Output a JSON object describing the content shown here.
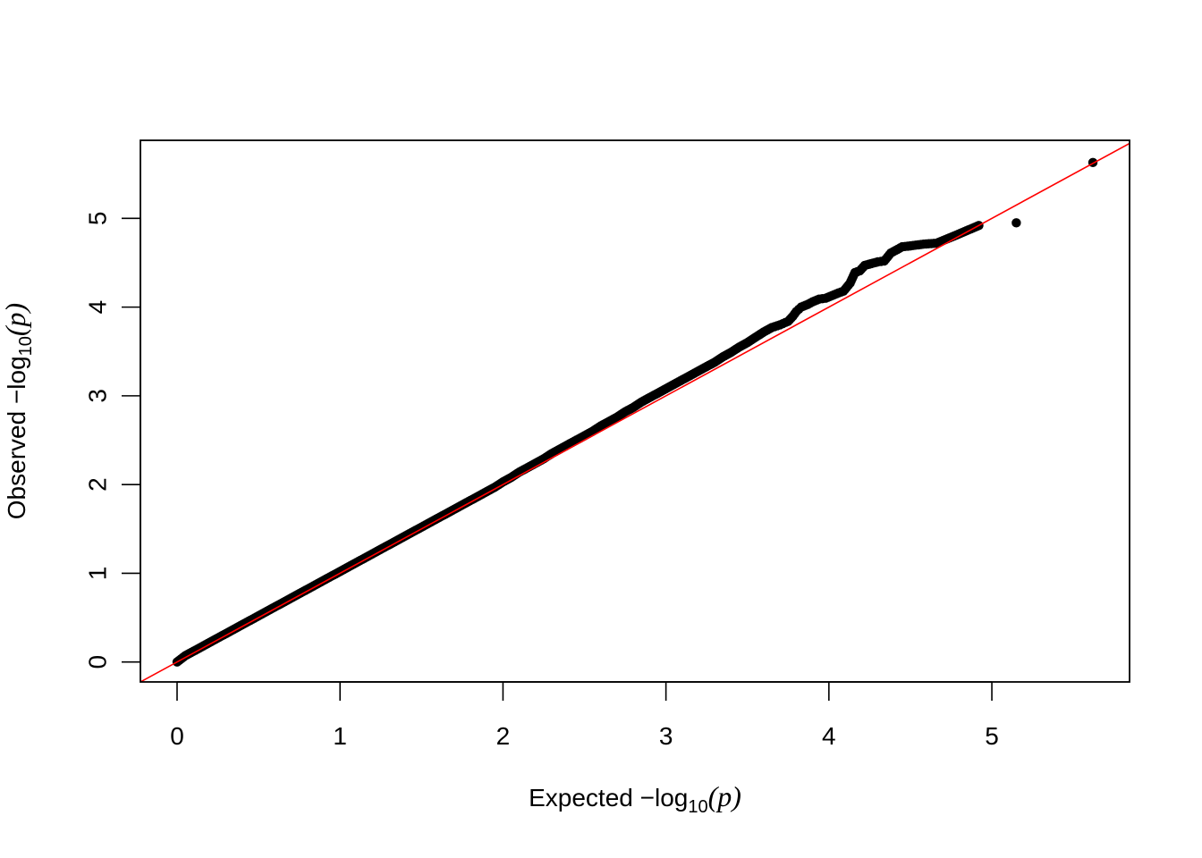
{
  "chart_data": {
    "type": "scatter",
    "title": "",
    "xlabel": {
      "prefix": "Expected  −log",
      "subscript": "10",
      "suffix": "(p)"
    },
    "ylabel": {
      "prefix": "Observed  −log",
      "subscript": "10",
      "suffix": "(p)"
    },
    "xlim": [
      -0.225,
      5.845
    ],
    "ylim": [
      -0.225,
      5.88
    ],
    "xticks": [
      0,
      1,
      2,
      3,
      4,
      5
    ],
    "yticks": [
      0,
      1,
      2,
      3,
      4,
      5
    ],
    "xtick_labels": [
      "0",
      "1",
      "2",
      "3",
      "4",
      "5"
    ],
    "ytick_labels": [
      "0",
      "1",
      "2",
      "3",
      "4",
      "5"
    ],
    "grid": false,
    "reference_line": {
      "slope": 1,
      "intercept": 0,
      "color": "#ff0000"
    },
    "point_color": "#000000",
    "series": [
      {
        "points": [
          [
            0.0,
            0.0
          ],
          [
            0.05,
            0.07
          ],
          [
            0.1,
            0.12
          ],
          [
            0.15,
            0.17
          ],
          [
            0.2,
            0.22
          ],
          [
            0.25,
            0.27
          ],
          [
            0.3,
            0.32
          ],
          [
            0.35,
            0.37
          ],
          [
            0.4,
            0.42
          ],
          [
            0.45,
            0.47
          ],
          [
            0.5,
            0.52
          ],
          [
            0.55,
            0.57
          ],
          [
            0.6,
            0.62
          ],
          [
            0.65,
            0.67
          ],
          [
            0.7,
            0.72
          ],
          [
            0.75,
            0.77
          ],
          [
            0.8,
            0.82
          ],
          [
            0.85,
            0.87
          ],
          [
            0.9,
            0.92
          ],
          [
            0.95,
            0.97
          ],
          [
            1.0,
            1.02
          ],
          [
            1.05,
            1.07
          ],
          [
            1.1,
            1.12
          ],
          [
            1.15,
            1.17
          ],
          [
            1.2,
            1.22
          ],
          [
            1.25,
            1.27
          ],
          [
            1.3,
            1.32
          ],
          [
            1.35,
            1.37
          ],
          [
            1.4,
            1.42
          ],
          [
            1.45,
            1.47
          ],
          [
            1.5,
            1.52
          ],
          [
            1.55,
            1.57
          ],
          [
            1.6,
            1.62
          ],
          [
            1.65,
            1.67
          ],
          [
            1.7,
            1.72
          ],
          [
            1.75,
            1.77
          ],
          [
            1.8,
            1.82
          ],
          [
            1.85,
            1.87
          ],
          [
            1.9,
            1.92
          ],
          [
            1.95,
            1.97
          ],
          [
            2.0,
            2.03
          ],
          [
            2.05,
            2.08
          ],
          [
            2.1,
            2.14
          ],
          [
            2.15,
            2.19
          ],
          [
            2.2,
            2.24
          ],
          [
            2.25,
            2.29
          ],
          [
            2.3,
            2.35
          ],
          [
            2.35,
            2.4
          ],
          [
            2.4,
            2.45
          ],
          [
            2.45,
            2.5
          ],
          [
            2.5,
            2.55
          ],
          [
            2.55,
            2.6
          ],
          [
            2.6,
            2.66
          ],
          [
            2.65,
            2.71
          ],
          [
            2.7,
            2.76
          ],
          [
            2.75,
            2.82
          ],
          [
            2.8,
            2.87
          ],
          [
            2.85,
            2.93
          ],
          [
            2.9,
            2.98
          ],
          [
            2.95,
            3.03
          ],
          [
            3.0,
            3.08
          ],
          [
            3.05,
            3.13
          ],
          [
            3.1,
            3.18
          ],
          [
            3.15,
            3.23
          ],
          [
            3.2,
            3.28
          ],
          [
            3.25,
            3.33
          ],
          [
            3.3,
            3.38
          ],
          [
            3.35,
            3.44
          ],
          [
            3.4,
            3.49
          ],
          [
            3.45,
            3.55
          ],
          [
            3.5,
            3.6
          ],
          [
            3.55,
            3.66
          ],
          [
            3.6,
            3.72
          ],
          [
            3.65,
            3.77
          ],
          [
            3.7,
            3.8
          ],
          [
            3.75,
            3.84
          ],
          [
            3.78,
            3.9
          ],
          [
            3.8,
            3.95
          ],
          [
            3.83,
            4.0
          ],
          [
            3.87,
            4.03
          ],
          [
            3.9,
            4.06
          ],
          [
            3.94,
            4.09
          ],
          [
            3.98,
            4.1
          ],
          [
            4.02,
            4.13
          ],
          [
            4.06,
            4.16
          ],
          [
            4.09,
            4.18
          ],
          [
            4.13,
            4.27
          ],
          [
            4.16,
            4.39
          ],
          [
            4.19,
            4.41
          ],
          [
            4.22,
            4.47
          ],
          [
            4.26,
            4.49
          ],
          [
            4.3,
            4.51
          ],
          [
            4.34,
            4.52
          ],
          [
            4.38,
            4.61
          ],
          [
            4.45,
            4.68
          ],
          [
            4.5,
            4.69
          ],
          [
            4.58,
            4.71
          ],
          [
            4.66,
            4.72
          ],
          [
            4.78,
            4.81
          ],
          [
            4.92,
            4.92
          ],
          [
            5.15,
            4.95
          ],
          [
            5.62,
            5.63
          ]
        ]
      }
    ]
  }
}
